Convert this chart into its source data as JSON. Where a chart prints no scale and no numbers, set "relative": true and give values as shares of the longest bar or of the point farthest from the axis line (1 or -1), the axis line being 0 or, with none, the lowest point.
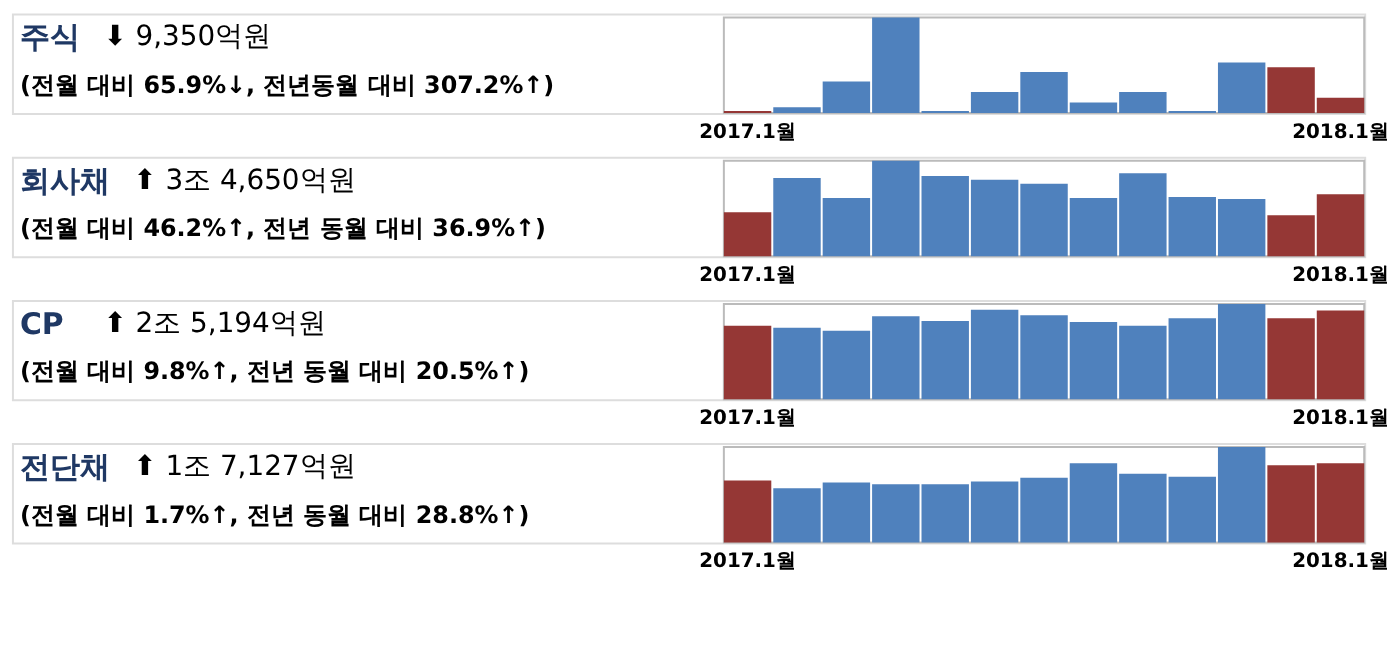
{
  "chart_data": [
    {
      "type": "bar",
      "relative": true,
      "annotations": [
        "주식",
        "⬇ 9,350억원",
        "(전월 대비 65.9%↓, 전년동월 대비 307.2%↑)"
      ],
      "categories": [
        "2017.1월",
        null,
        null,
        null,
        null,
        null,
        null,
        null,
        null,
        null,
        null,
        null,
        "2018.1월"
      ],
      "values": [
        0.02,
        0.06,
        0.33,
        1.0,
        0.02,
        0.22,
        0.43,
        0.11,
        0.22,
        0.02,
        0.53,
        0.48,
        0.16
      ],
      "colors": [
        "#953735",
        "#4f81bd",
        "#4f81bd",
        "#4f81bd",
        "#4f81bd",
        "#4f81bd",
        "#4f81bd",
        "#4f81bd",
        "#4f81bd",
        "#4f81bd",
        "#4f81bd",
        "#953735",
        "#953735"
      ]
    },
    {
      "type": "bar",
      "relative": true,
      "annotations": [
        "회사채",
        "⬆ 3조 4,650억원",
        "(전월 대비 46.2%↑, 전년 동월 대비 36.9%↑)"
      ],
      "categories": [
        "2017.1월",
        null,
        null,
        null,
        null,
        null,
        null,
        null,
        null,
        null,
        null,
        null,
        "2018.1월"
      ],
      "values": [
        0.46,
        0.82,
        0.61,
        1.0,
        0.84,
        0.8,
        0.76,
        0.61,
        0.87,
        0.62,
        0.6,
        0.43,
        0.65
      ],
      "colors": [
        "#953735",
        "#4f81bd",
        "#4f81bd",
        "#4f81bd",
        "#4f81bd",
        "#4f81bd",
        "#4f81bd",
        "#4f81bd",
        "#4f81bd",
        "#4f81bd",
        "#4f81bd",
        "#953735",
        "#953735"
      ]
    },
    {
      "type": "bar",
      "relative": true,
      "annotations": [
        "CP",
        "⬆ 2조 5,194억원",
        "(전월 대비 9.8%↑, 전년 동월 대비 20.5%↑)"
      ],
      "categories": [
        "2017.1월",
        null,
        null,
        null,
        null,
        null,
        null,
        null,
        null,
        null,
        null,
        null,
        "2018.1월"
      ],
      "values": [
        0.77,
        0.75,
        0.72,
        0.87,
        0.82,
        0.94,
        0.88,
        0.81,
        0.77,
        0.85,
        1.0,
        0.85,
        0.93
      ],
      "colors": [
        "#953735",
        "#4f81bd",
        "#4f81bd",
        "#4f81bd",
        "#4f81bd",
        "#4f81bd",
        "#4f81bd",
        "#4f81bd",
        "#4f81bd",
        "#4f81bd",
        "#4f81bd",
        "#953735",
        "#953735"
      ]
    },
    {
      "type": "bar",
      "relative": true,
      "annotations": [
        "전단채",
        "⬆ 1조 7,127억원",
        "(전월 대비 1.7%↑, 전년 동월 대비 28.8%↑)"
      ],
      "categories": [
        "2017.1월",
        null,
        null,
        null,
        null,
        null,
        null,
        null,
        null,
        null,
        null,
        null,
        "2018.1월"
      ],
      "values": [
        0.65,
        0.57,
        0.63,
        0.61,
        0.61,
        0.64,
        0.68,
        0.83,
        0.72,
        0.69,
        1.0,
        0.81,
        0.83
      ],
      "colors": [
        "#953735",
        "#4f81bd",
        "#4f81bd",
        "#4f81bd",
        "#4f81bd",
        "#4f81bd",
        "#4f81bd",
        "#4f81bd",
        "#4f81bd",
        "#4f81bd",
        "#4f81bd",
        "#953735",
        "#953735"
      ]
    }
  ]
}
